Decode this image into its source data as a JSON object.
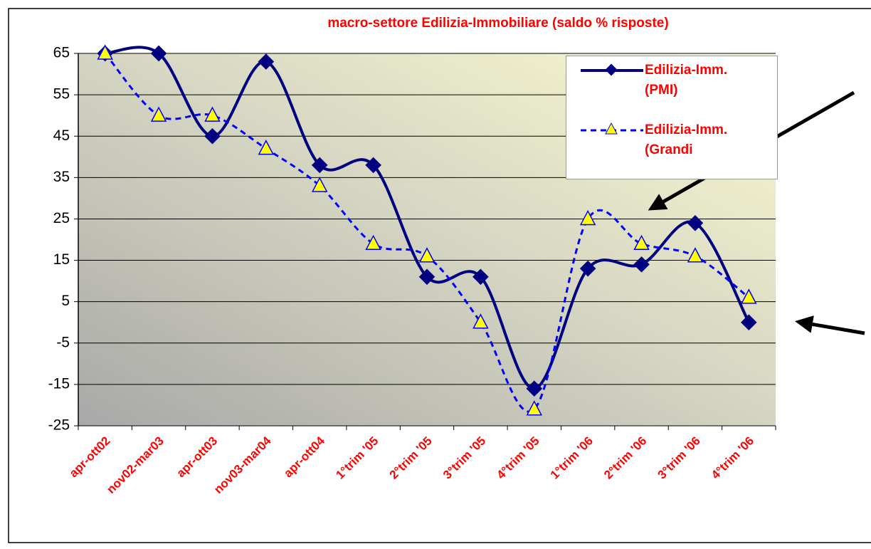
{
  "chart_data": {
    "type": "line",
    "title": "macro-settore Edilizia-Immobiliare (saldo % risposte)",
    "categories": [
      "apr-ott02",
      "nov02-mar03",
      "apr-ott03",
      "nov03-mar04",
      "apr-ott04",
      "1°trim '05",
      "2°trim '05",
      "3°trim '05",
      "4°trim '05",
      "1°trim '06",
      "2°trim '06",
      "3°trim '06",
      "4°trim '06"
    ],
    "series": [
      {
        "name": "Edilizia-Imm. (PMI)",
        "color": "#000080",
        "values": [
          65,
          65,
          45,
          63,
          38,
          38,
          11,
          11,
          -16,
          13,
          14,
          24,
          0
        ]
      },
      {
        "name": "Edilizia-Imm. (Grandi",
        "color": "#0000ff",
        "values": [
          65,
          50,
          50,
          42,
          33,
          19,
          16,
          0,
          -21,
          25,
          19,
          16,
          6
        ]
      }
    ],
    "ylim": [
      -25,
      65
    ],
    "yticks": [
      65,
      55,
      45,
      35,
      25,
      15,
      5,
      -5,
      -15,
      -25
    ],
    "grid": true
  }
}
